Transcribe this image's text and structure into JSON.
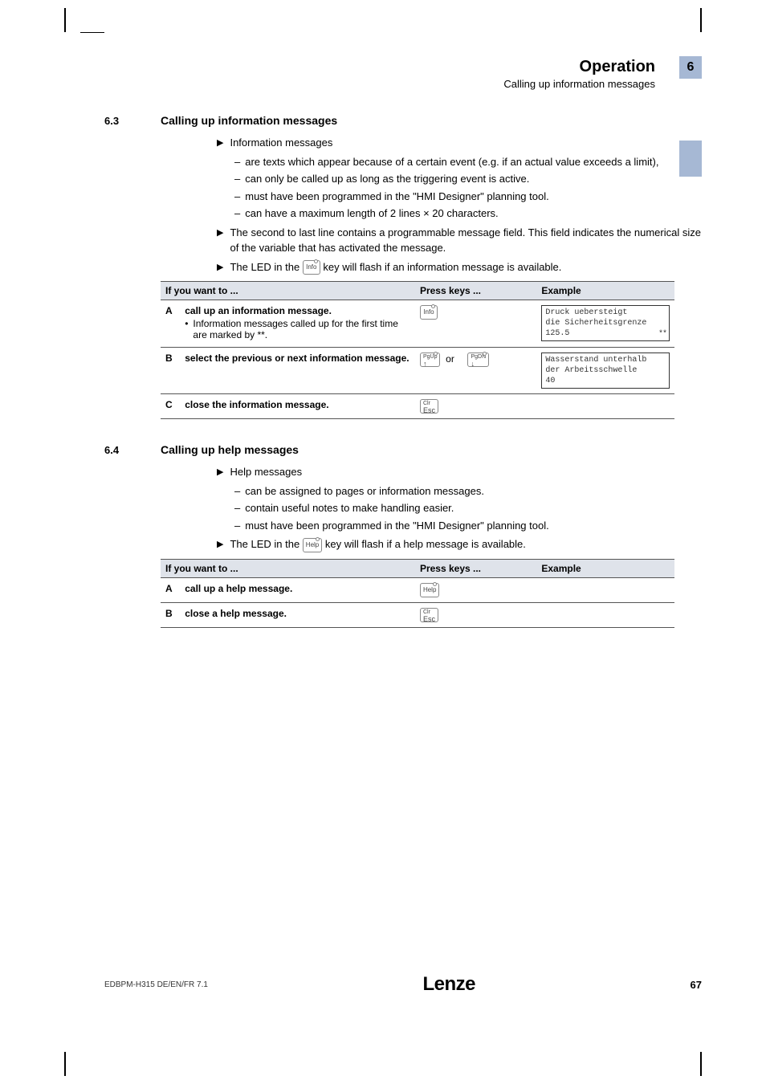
{
  "header": {
    "title": "Operation",
    "subtitle": "Calling up information messages",
    "chapter": "6"
  },
  "sections": {
    "s63": {
      "num": "6.3",
      "title": "Calling up information messages",
      "b1_lead": "Information messages",
      "b1_d1": "are texts which appear because of a certain event (e.g. if an actual value exceeds a limit),",
      "b1_d2": "can only be called up as long as the triggering event is active.",
      "b1_d3": "must have been programmed in the \"HMI Designer\" planning tool.",
      "b1_d4": "can have a maximum length of 2 lines × 20 characters.",
      "b2": "The second to last line contains a programmable message field. This field indicates the numerical size of the variable that has activated the message.",
      "b3_pre": "The LED in the ",
      "b3_key": "Info",
      "b3_post": " key will flash if an information message is available."
    },
    "s64": {
      "num": "6.4",
      "title": "Calling up help messages",
      "b1_lead": "Help messages",
      "b1_d1": "can be assigned to pages or information messages.",
      "b1_d2": "contain useful notes to make handling easier.",
      "b1_d3": "must have been programmed in the \"HMI Designer\" planning tool.",
      "b2_pre": "The LED in the ",
      "b2_key": "Help",
      "b2_post": " key will flash if a help message is available."
    }
  },
  "table63": {
    "h1": "If you want to ...",
    "h2": "Press keys ...",
    "h3": "Example",
    "rows": [
      {
        "label": "A",
        "main": "call up an information message.",
        "sub": "Information messages called up for the first time are marked by **.",
        "key": "Info",
        "lcd": "Druck uebersteigt\ndie Sicherheitsgrenze\n125.5",
        "lcd_star": "**"
      },
      {
        "label": "B",
        "main": "select the previous or next information message.",
        "sub": "",
        "key_l_top": "PgUp",
        "key_l_bot": "↑",
        "key_mid": "or",
        "key_r_top": "PgDN",
        "key_r_bot": "↓",
        "lcd": "Wasserstand unterhalb\nder Arbeitsschwelle\n40",
        "lcd_star": ""
      },
      {
        "label": "C",
        "main": "close the information message.",
        "sub": "",
        "key_top": "Clr",
        "key_bot": "Esc",
        "lcd": "",
        "lcd_star": ""
      }
    ]
  },
  "table64": {
    "h1": "If you want to ...",
    "h2": "Press keys ...",
    "h3": "Example",
    "rows": [
      {
        "label": "A",
        "main": "call up a help message.",
        "key": "Help"
      },
      {
        "label": "B",
        "main": "close a help message.",
        "key_top": "Clr",
        "key_bot": "Esc"
      }
    ]
  },
  "footer": {
    "doc": "EDBPM-H315  DE/EN/FR  7.1",
    "logo": "Lenze",
    "page": "67"
  },
  "colors": {
    "badge": "#a6b8d4",
    "table_header": "#dfe3ea"
  }
}
